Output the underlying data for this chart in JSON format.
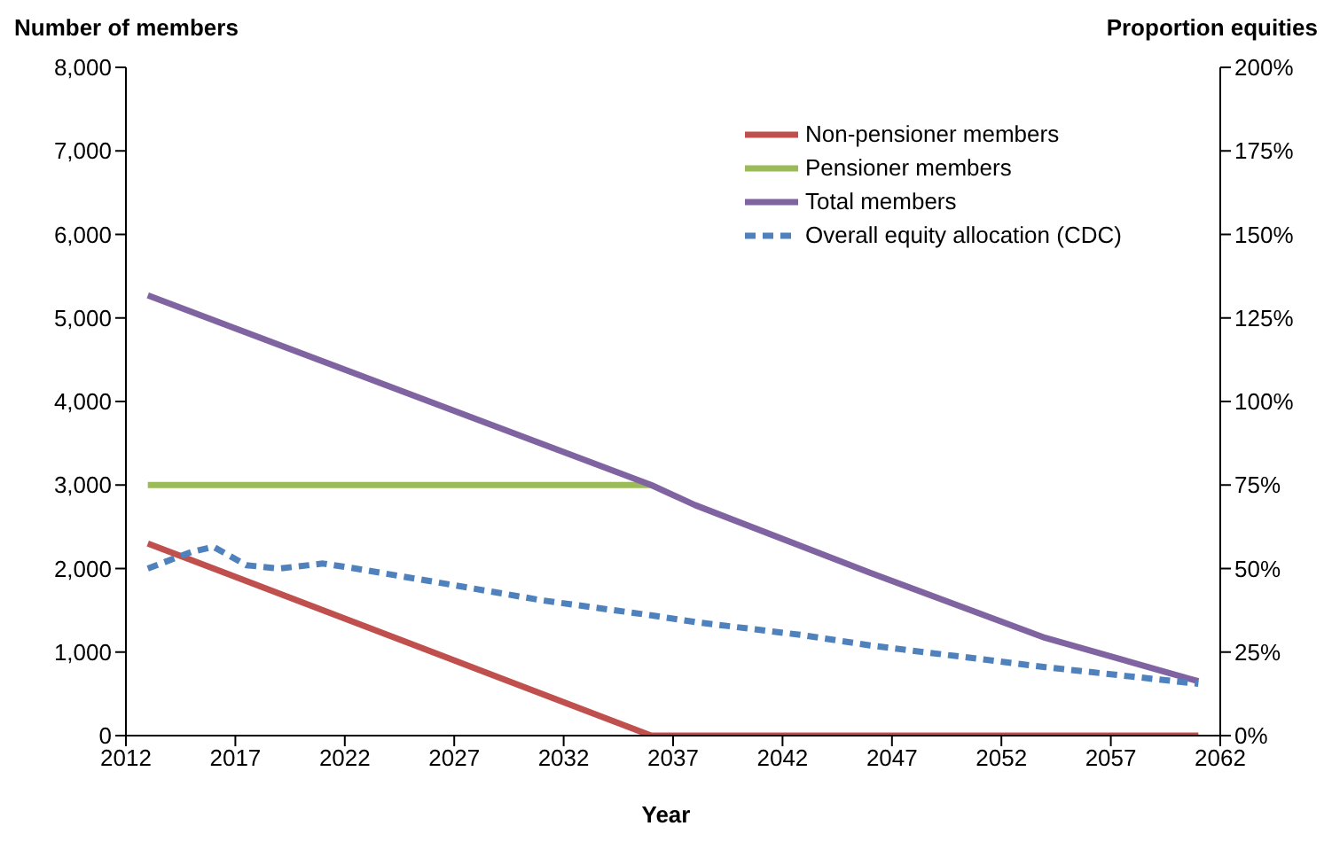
{
  "chart_data": {
    "type": "line",
    "xlabel": "Year",
    "ylabel": "Number of members",
    "y2label": "Proportion equities",
    "xlim": [
      2012,
      2062
    ],
    "xticks": [
      2012,
      2017,
      2022,
      2027,
      2032,
      2037,
      2042,
      2047,
      2052,
      2057,
      2062
    ],
    "ylim": [
      0,
      8000
    ],
    "yticks": [
      {
        "value": 0,
        "label": "0"
      },
      {
        "value": 1000,
        "label": "1,000"
      },
      {
        "value": 2000,
        "label": "2,000"
      },
      {
        "value": 3000,
        "label": "3,000"
      },
      {
        "value": 4000,
        "label": "4,000"
      },
      {
        "value": 5000,
        "label": "5,000"
      },
      {
        "value": 6000,
        "label": "6,000"
      },
      {
        "value": 7000,
        "label": "7,000"
      },
      {
        "value": 8000,
        "label": "8,000"
      }
    ],
    "y2lim": [
      0,
      200
    ],
    "y2ticks": [
      {
        "value": 0,
        "label": "0%"
      },
      {
        "value": 25,
        "label": "25%"
      },
      {
        "value": 50,
        "label": "50%"
      },
      {
        "value": 75,
        "label": "75%"
      },
      {
        "value": 100,
        "label": "100%"
      },
      {
        "value": 125,
        "label": "125%"
      },
      {
        "value": 150,
        "label": "150%"
      },
      {
        "value": 175,
        "label": "175%"
      },
      {
        "value": 200,
        "label": "200%"
      }
    ],
    "grid": false,
    "legend": "top right",
    "marker": "none",
    "line_style": "solid",
    "series": [
      {
        "name": "Non-pensioner members",
        "color": "#c0504d",
        "x": [
          2013,
          2036,
          2061
        ],
        "values": [
          2300,
          0,
          0
        ]
      },
      {
        "name": "Pensioner members",
        "color": "#9bbb59",
        "x": [
          2013,
          2036
        ],
        "values": [
          3000,
          3000
        ]
      },
      {
        "name": "Total members",
        "color": "#8064a2",
        "x": [
          2013,
          2036,
          2038,
          2046,
          2054,
          2061
        ],
        "values": [
          5270,
          3000,
          2760,
          1950,
          1170,
          650
        ]
      },
      {
        "name": "Overall equity allocation (CDC)",
        "color": "#4f81bd",
        "axis": "y2",
        "line_style": "dashed",
        "x": [
          2013,
          2015,
          2016,
          2017.5,
          2019,
          2021,
          2022.5,
          2027,
          2031,
          2036,
          2038,
          2043,
          2046,
          2054,
          2061
        ],
        "values": [
          50,
          55,
          56.5,
          51,
          50,
          51.5,
          50,
          45,
          40.5,
          36,
          34,
          30,
          27,
          20.5,
          15.5
        ]
      }
    ]
  }
}
